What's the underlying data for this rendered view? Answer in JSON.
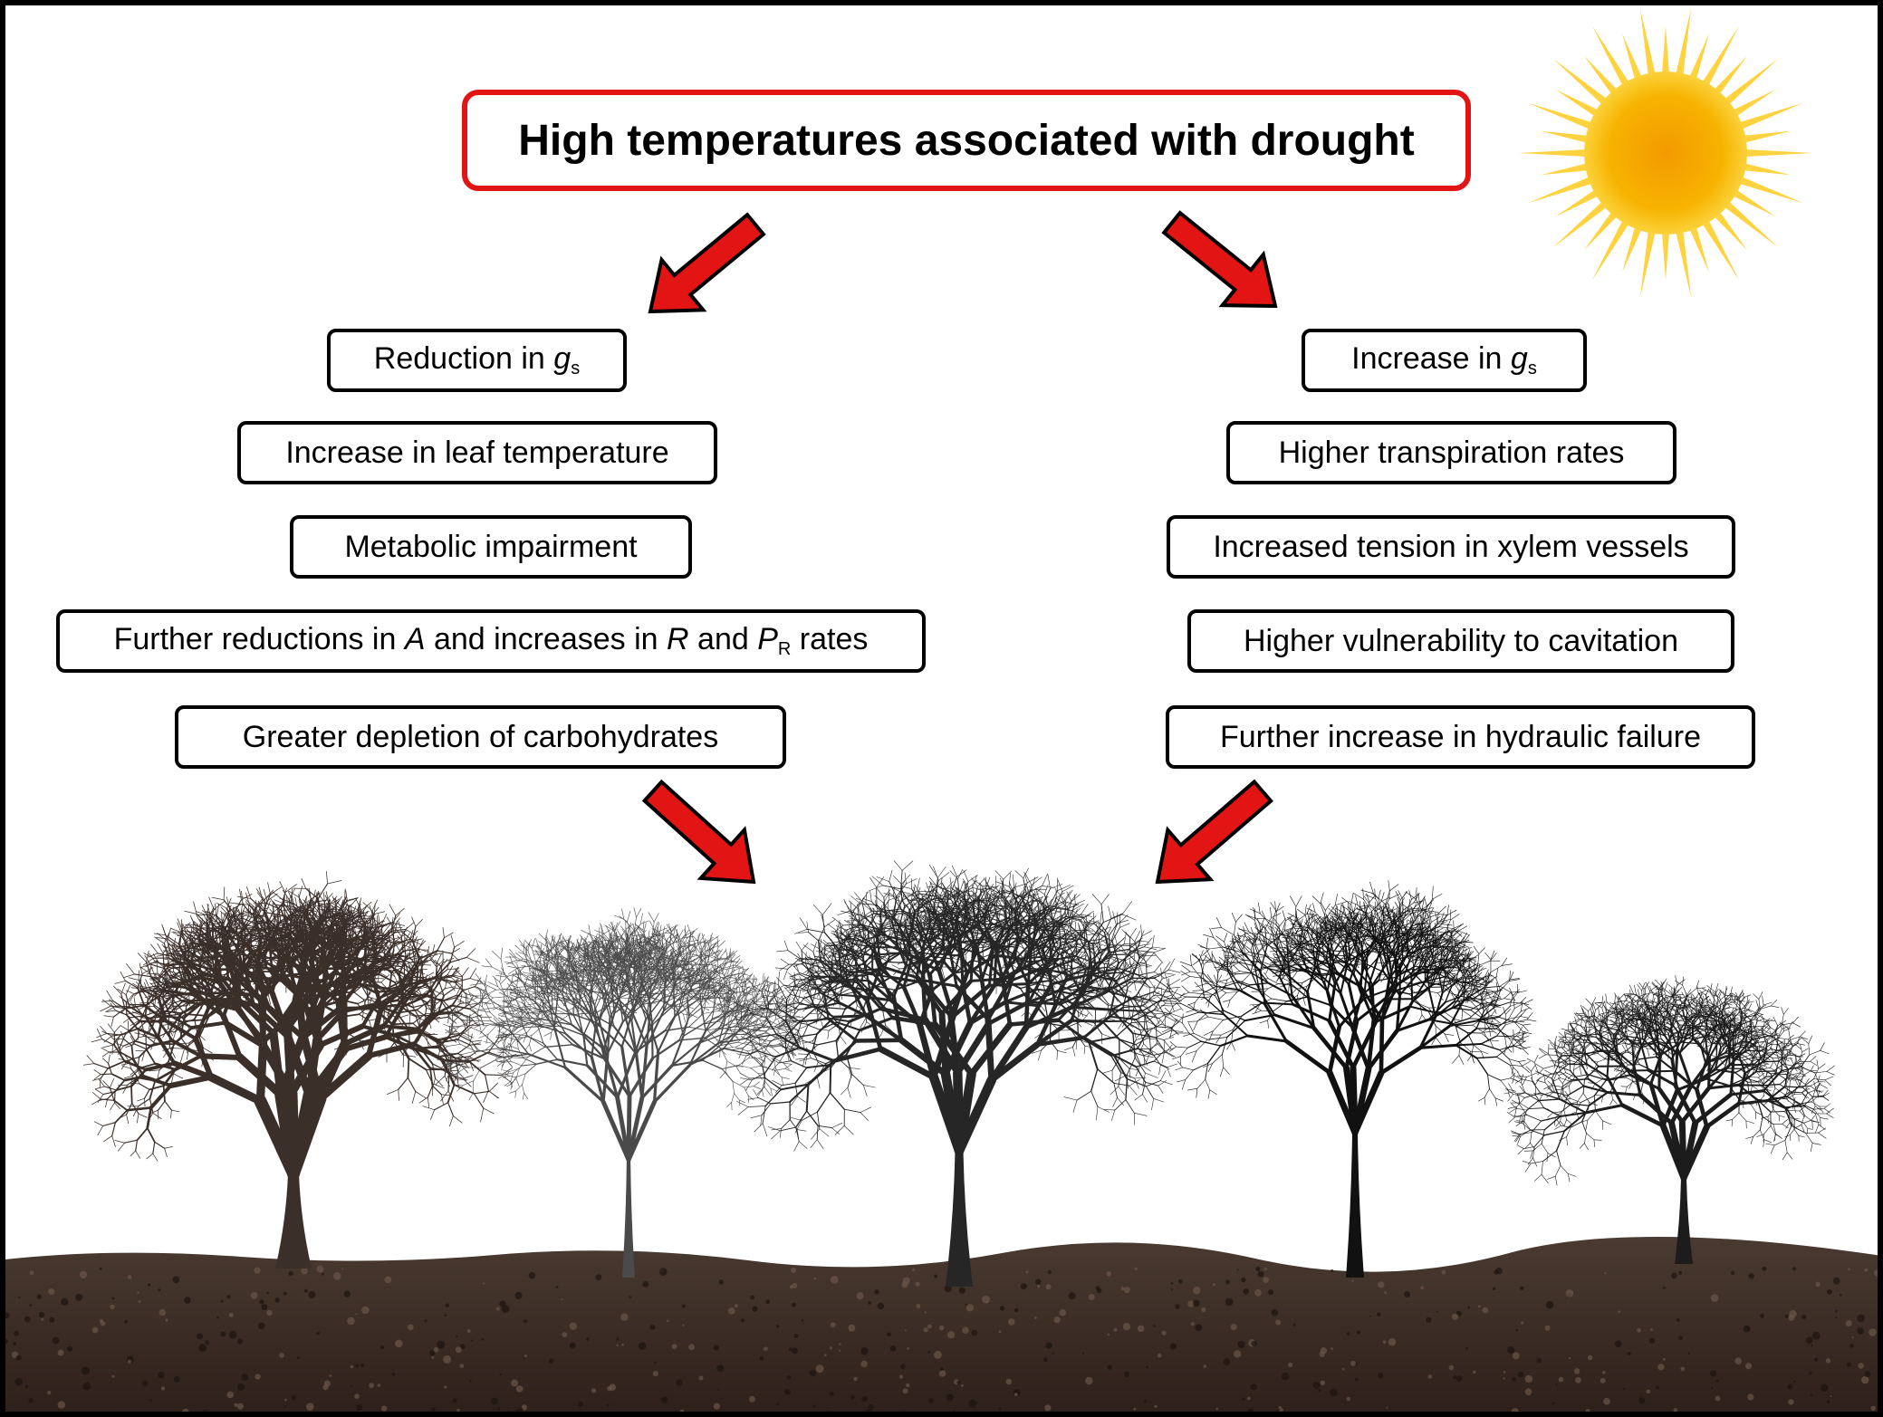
{
  "title": "High temperatures associated with drought",
  "left_chain": [
    {
      "pre": "Reduction in ",
      "var": "g",
      "sub": "s",
      "post": ""
    },
    {
      "pre": "Increase in leaf temperature",
      "var": "",
      "sub": "",
      "post": ""
    },
    {
      "pre": "Metabolic impairment",
      "var": "",
      "sub": "",
      "post": ""
    },
    {
      "pre": "Further reductions in ",
      "var": "A",
      "mid1": " and increases in ",
      "var2": "R",
      "mid2": " and ",
      "var3": "P",
      "sub3": "R",
      "post": " rates"
    },
    {
      "pre": "Greater depletion of carbohydrates",
      "var": "",
      "sub": "",
      "post": ""
    }
  ],
  "right_chain": [
    {
      "pre": "Increase in ",
      "var": "g",
      "sub": "s",
      "post": ""
    },
    {
      "pre": "Higher transpiration rates",
      "var": "",
      "sub": "",
      "post": ""
    },
    {
      "pre": "Increased tension in xylem vessels",
      "var": "",
      "sub": "",
      "post": ""
    },
    {
      "pre": "Higher vulnerability to cavitation",
      "var": "",
      "sub": "",
      "post": ""
    },
    {
      "pre": "Further increase in hydraulic failure",
      "var": "",
      "sub": "",
      "post": ""
    }
  ],
  "icons": {
    "sun": "sun-icon",
    "arrows": "red-arrow-icon",
    "trees": "bare-tree-icon",
    "ground": "soil-ground"
  },
  "colors": {
    "arrow_fill": "#e31414",
    "title_border": "#e31414",
    "sun_core": "#f7a400",
    "sun_rays": "#ffd23f",
    "soil": "#3a2a22"
  }
}
